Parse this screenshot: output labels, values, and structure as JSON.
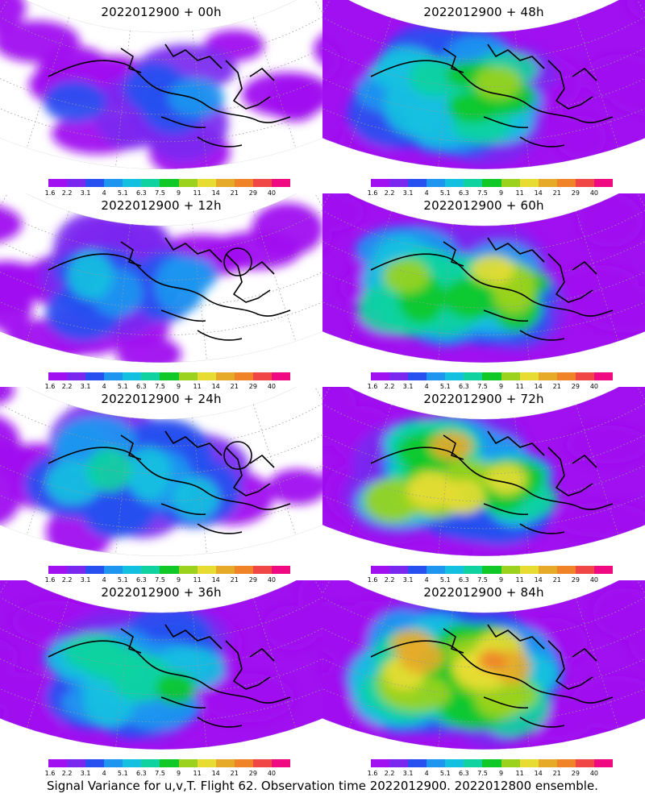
{
  "caption": "Signal Variance for u,v,T. Flight 62. Observation time 2022012900. 2022012800 ensemble.",
  "colorbar": {
    "labels": [
      "1.6",
      "2.2",
      "3.1",
      "4",
      "5.1",
      "6.3",
      "7.5",
      "9",
      "11",
      "14",
      "21",
      "29",
      "40"
    ],
    "colors": [
      "#a010f0",
      "#7a28f0",
      "#2850f0",
      "#1e96f0",
      "#14c0e0",
      "#10d2a0",
      "#10c828",
      "#9ad21e",
      "#e6dc32",
      "#e6aa28",
      "#f08228",
      "#f04646",
      "#f00a82"
    ]
  },
  "panels": [
    {
      "title": "2022012900 + 00h",
      "intensity": 0.15,
      "circle": false
    },
    {
      "title": "2022012900 + 48h",
      "intensity": 0.6,
      "circle": false
    },
    {
      "title": "2022012900 + 12h",
      "intensity": 0.3,
      "circle": true
    },
    {
      "title": "2022012900 + 60h",
      "intensity": 0.7,
      "circle": false
    },
    {
      "title": "2022012900 + 24h",
      "intensity": 0.4,
      "circle": true
    },
    {
      "title": "2022012900 + 72h",
      "intensity": 0.8,
      "circle": false
    },
    {
      "title": "2022012900 + 36h",
      "intensity": 0.5,
      "circle": false
    },
    {
      "title": "2022012900 + 84h",
      "intensity": 0.9,
      "circle": false
    }
  ]
}
